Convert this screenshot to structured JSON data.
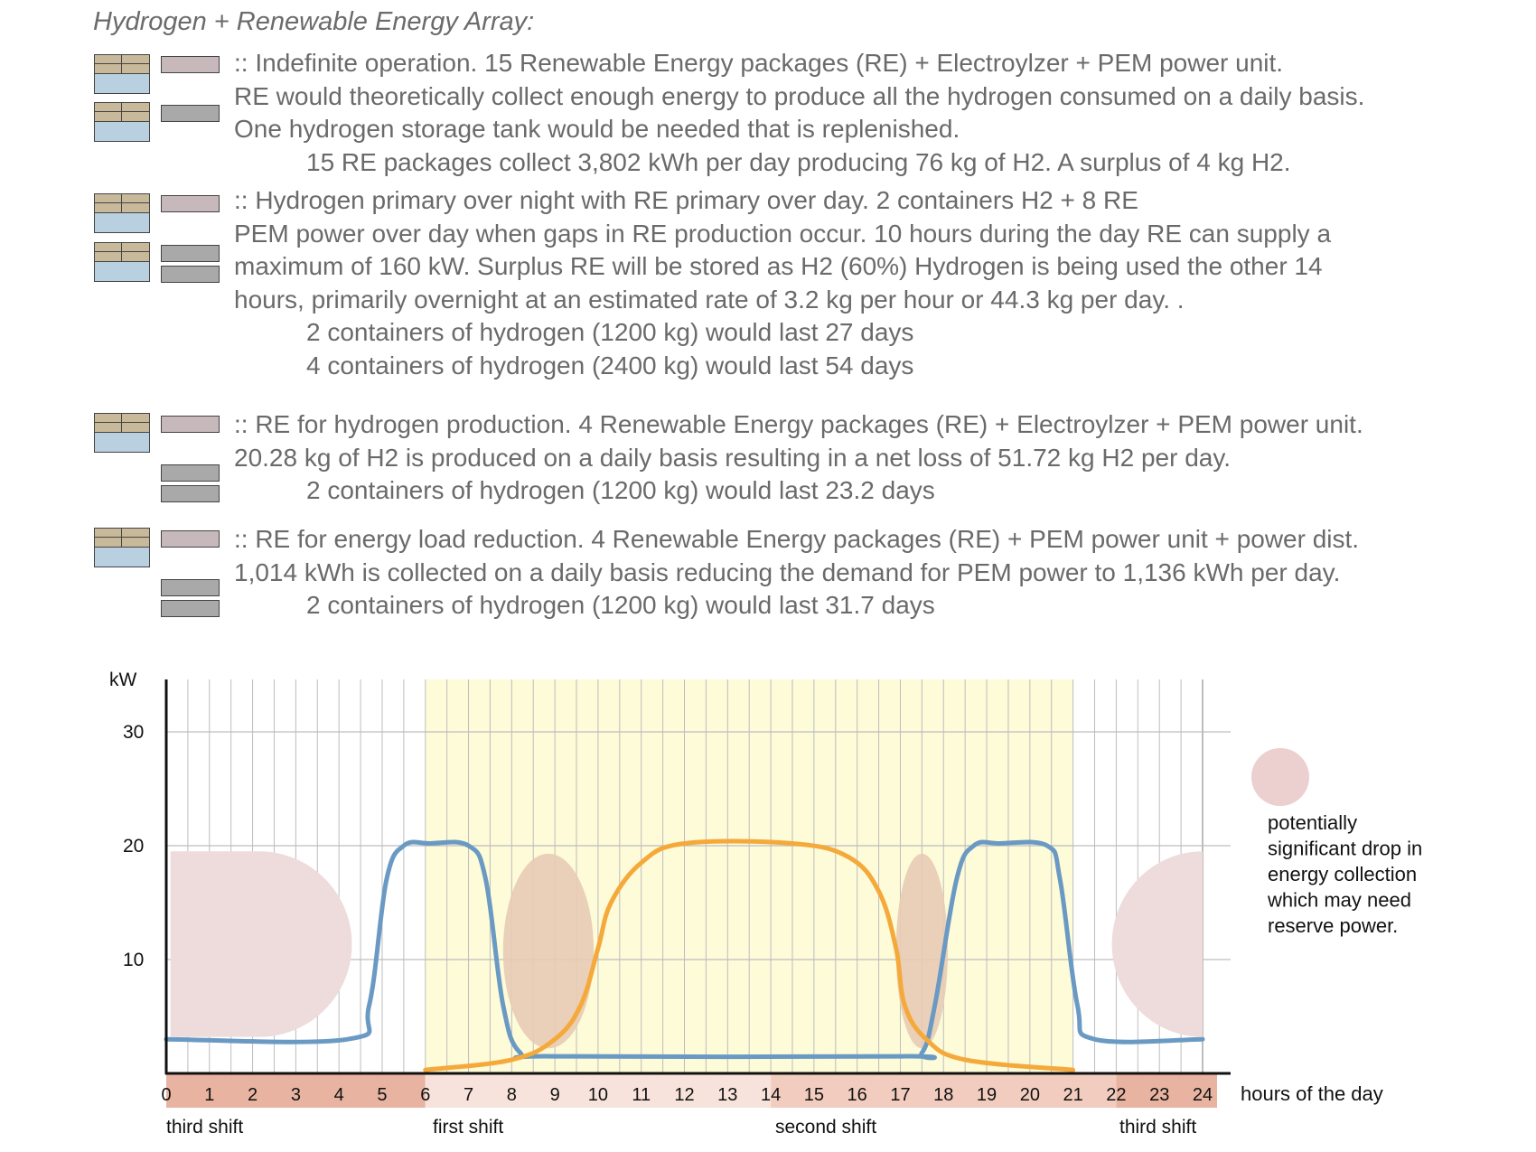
{
  "heading": "Hydrogen + Renewable Energy Array:",
  "scenarios": [
    {
      "lines": [
        ":: Indefinite operation. 15 Renewable Energy packages (RE) + Electroylzer + PEM power unit.",
        "RE would theoretically collect enough energy to produce all the hydrogen consumed on a daily basis.",
        "One hydrogen storage tank would be needed that is replenished.",
        "15 RE packages collect 3,802 kWh per day producing 76 kg of H2. A surplus of 4 kg H2."
      ]
    },
    {
      "lines": [
        ":: Hydrogen primary over night with RE primary over day. 2 containers H2 + 8 RE",
        "PEM power over day when gaps in RE production occur. 10 hours during the day RE can supply a",
        "maximum of 160 kW. Surplus RE will be stored as H2 (60%) Hydrogen is being used the other 14",
        "hours, primarily overnight at an estimated rate of 3.2 kg per hour or 44.3 kg per day. .",
        "2 containers of hydrogen (1200 kg) would last 27 days",
        "4 containers of hydrogen (2400 kg) would last 54 days"
      ]
    },
    {
      "lines": [
        ":: RE for hydrogen production. 4 Renewable Energy packages (RE) + Electroylzer + PEM power unit.",
        "20.28 kg of H2 is produced on a daily basis resulting in a net loss of 51.72 kg H2 per day.",
        "2 containers of hydrogen (1200 kg) would last 23.2 days"
      ]
    },
    {
      "lines": [
        ":: RE for energy load reduction. 4 Renewable Energy packages (RE) + PEM power unit + power dist.",
        "1,014 kWh is collected on a daily basis reducing the demand for PEM power to 1,136 kWh per day.",
        "2 containers of hydrogen (1200 kg) would last 31.7 days"
      ]
    }
  ],
  "chart_data": {
    "type": "line",
    "ylabel": "kW",
    "xlabel": "hours of the day",
    "xlim": [
      0,
      24
    ],
    "ylim": [
      0,
      34
    ],
    "y_ticks": [
      10,
      20,
      30
    ],
    "x_ticks": [
      0,
      1,
      2,
      3,
      4,
      5,
      6,
      7,
      8,
      9,
      10,
      11,
      12,
      13,
      14,
      15,
      16,
      17,
      18,
      19,
      20,
      21,
      22,
      23,
      24
    ],
    "shifts": [
      {
        "label": "third shift",
        "start": 0,
        "end": 6,
        "color": "#e8b3a0"
      },
      {
        "label": "first shift",
        "start": 6,
        "end": 14,
        "color": "#f7e3db"
      },
      {
        "label": "second shift",
        "start": 14,
        "end": 22,
        "color": "#f2cdbf"
      },
      {
        "label": "third shift",
        "start": 22,
        "end": 24,
        "color": "#e8b3a0"
      }
    ],
    "daylight_band": [
      6,
      21
    ],
    "series": [
      {
        "color": "#6a9ac4",
        "points": [
          [
            0,
            3
          ],
          [
            4.2,
            3
          ],
          [
            4.7,
            6
          ],
          [
            5.1,
            17
          ],
          [
            5.5,
            20
          ],
          [
            6.1,
            20.2
          ],
          [
            7.0,
            20
          ],
          [
            7.4,
            17
          ],
          [
            7.8,
            6
          ],
          [
            8.2,
            1.8
          ],
          [
            9,
            1.5
          ],
          [
            17,
            1.5
          ],
          [
            17.5,
            1.8
          ],
          [
            17.8,
            6
          ],
          [
            18.3,
            17
          ],
          [
            18.7,
            20
          ],
          [
            19.3,
            20.2
          ],
          [
            20.4,
            20
          ],
          [
            20.7,
            17
          ],
          [
            21.1,
            6
          ],
          [
            21.5,
            3
          ],
          [
            24,
            3
          ]
        ]
      },
      {
        "color": "#f5a93a",
        "points": [
          [
            6,
            0.3
          ],
          [
            8,
            1.2
          ],
          [
            9,
            3
          ],
          [
            9.6,
            6
          ],
          [
            10.0,
            11
          ],
          [
            10.3,
            15
          ],
          [
            11,
            18.5
          ],
          [
            12,
            20.2
          ],
          [
            14.5,
            20.2
          ],
          [
            15.8,
            19
          ],
          [
            16.5,
            16
          ],
          [
            16.9,
            11
          ],
          [
            17.1,
            6
          ],
          [
            17.6,
            3
          ],
          [
            18.5,
            1.2
          ],
          [
            21,
            0.3
          ]
        ]
      }
    ],
    "drop_zones": [
      {
        "shape": "half-circle-left",
        "start": 0.1,
        "end": 4.3,
        "ymin": 3.2,
        "ymax": 19.5
      },
      {
        "shape": "ellipse",
        "center": 8.85,
        "half_width": 1.05,
        "ymin": 2.2,
        "ymax": 19.3
      },
      {
        "shape": "ellipse",
        "center": 17.5,
        "half_width": 0.6,
        "ymin": 2.2,
        "ymax": 19.3
      },
      {
        "shape": "half-circle-right",
        "start": 21.9,
        "end": 24,
        "ymin": 3.2,
        "ymax": 19.5
      }
    ],
    "legend": {
      "lines": [
        "potentially",
        "significant drop in",
        "energy collection",
        "which may need",
        "reserve power."
      ],
      "swatch_color": "#eccfcf"
    },
    "colors": {
      "drop_zone_day": "#e8cbb5",
      "drop_zone_night": "#eedcdc",
      "daylight": "#fdfbd8",
      "grid": "#bdbdbd",
      "axis": "#111111"
    }
  }
}
